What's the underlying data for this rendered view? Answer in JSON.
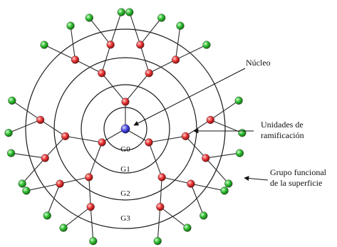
{
  "labels": {
    "core": "Núcleo",
    "branching_line1": "Unidades de",
    "branching_line2": "ramificación",
    "surface_line1": "Grupo funcional",
    "surface_line2": "de la superficie"
  },
  "generations": [
    "G0",
    "G1",
    "G2",
    "G3"
  ],
  "colors": {
    "core": "#3a3ad8",
    "branching": "#e83838",
    "surface_group": "#2fb82f",
    "ring": "#1a1a1a"
  }
}
